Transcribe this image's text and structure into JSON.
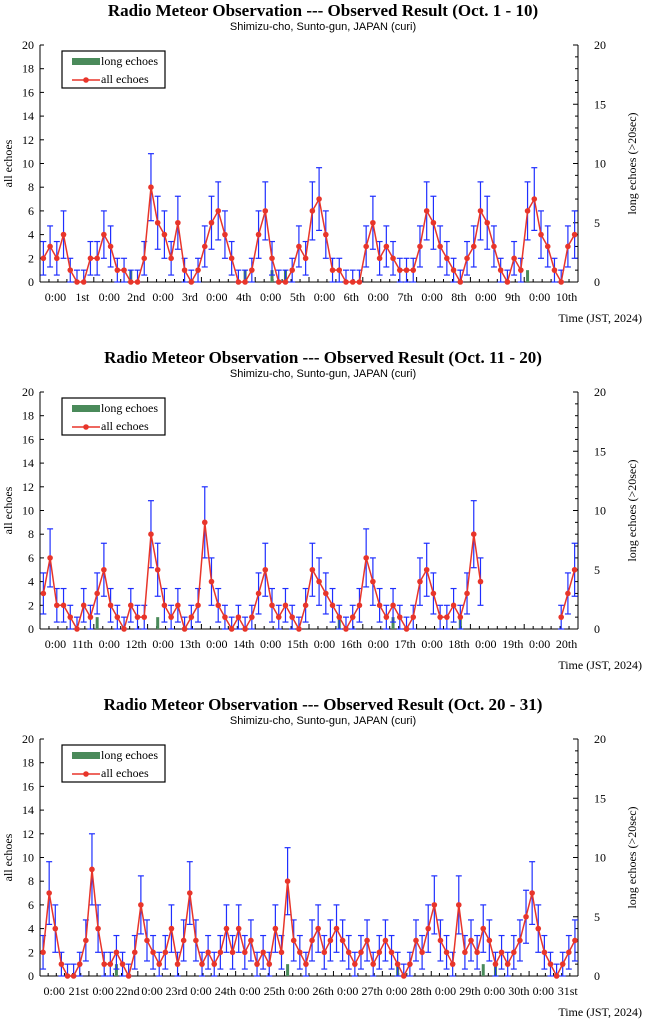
{
  "legend": {
    "long": "long echoes",
    "all": "all echoes"
  },
  "colors": {
    "all": "#e8352a",
    "err": "#1f2fff",
    "long": "#4a8a5a"
  },
  "chart_data": [
    {
      "type": "line",
      "title": "Radio Meteor Observation --- Observed Result (Oct. 1 - 10)",
      "subtitle": "Shimizu-cho, Sunto-gun, JAPAN (curi)",
      "ylabel": "all echoes",
      "y2label": "long echoes (>20sec)",
      "xlabel": "Time (JST, 2024)",
      "ylim": [
        0,
        20
      ],
      "y2lim": [
        0,
        20
      ],
      "yticks": [
        "0",
        "2",
        "4",
        "6",
        "8",
        "10",
        "12",
        "14",
        "16",
        "18",
        "20"
      ],
      "y2ticks": [
        "0",
        "5",
        "10",
        "15",
        "20"
      ],
      "xticks": [
        "0:00",
        "1st",
        "0:00",
        "2nd",
        "0:00",
        "3rd",
        "0:00",
        "4th",
        "0:00",
        "5th",
        "0:00",
        "6th",
        "0:00",
        "7th",
        "0:00",
        "8th",
        "0:00",
        "9th",
        "0:00",
        "10th"
      ],
      "step_hours": 3,
      "all_echoes": [
        2,
        3,
        2,
        4,
        1,
        0,
        0,
        2,
        2,
        4,
        3,
        1,
        1,
        0,
        0,
        2,
        8,
        5,
        4,
        2,
        5,
        1,
        0,
        1,
        3,
        5,
        6,
        4,
        2,
        0,
        0,
        1,
        4,
        6,
        2,
        0,
        0,
        1,
        3,
        2,
        6,
        7,
        4,
        1,
        1,
        0,
        0,
        0,
        3,
        5,
        2,
        3,
        2,
        1,
        1,
        1,
        3,
        6,
        5,
        3,
        2,
        1,
        0,
        2,
        3,
        6,
        5,
        3,
        1,
        0,
        2,
        1,
        6,
        7,
        4,
        3,
        1,
        0,
        3,
        4
      ],
      "long_echoes": [
        [
          13,
          1
        ],
        [
          30,
          1
        ],
        [
          34,
          1
        ],
        [
          36,
          1
        ],
        [
          72,
          1
        ]
      ]
    },
    {
      "type": "line",
      "title": "Radio Meteor Observation --- Observed Result (Oct. 11 - 20)",
      "subtitle": "Shimizu-cho, Sunto-gun, JAPAN (curi)",
      "ylabel": "all echoes",
      "y2label": "long echoes (>20sec)",
      "xlabel": "Time (JST, 2024)",
      "ylim": [
        0,
        20
      ],
      "y2lim": [
        0,
        20
      ],
      "yticks": [
        "0",
        "2",
        "4",
        "6",
        "8",
        "10",
        "12",
        "14",
        "16",
        "18",
        "20"
      ],
      "y2ticks": [
        "0",
        "5",
        "10",
        "15",
        "20"
      ],
      "xticks": [
        "0:00",
        "11th",
        "0:00",
        "12th",
        "0:00",
        "13th",
        "0:00",
        "14th",
        "0:00",
        "15th",
        "0:00",
        "16th",
        "0:00",
        "17th",
        "0:00",
        "18th",
        "0:00",
        "19th",
        "0:00",
        "20th"
      ],
      "step_hours": 3,
      "all_echoes": [
        3,
        6,
        2,
        2,
        1,
        0,
        2,
        1,
        3,
        5,
        2,
        1,
        0,
        2,
        1,
        1,
        8,
        5,
        2,
        1,
        2,
        0,
        1,
        2,
        9,
        4,
        2,
        1,
        0,
        1,
        0,
        1,
        3,
        5,
        2,
        1,
        2,
        1,
        0,
        2,
        5,
        4,
        3,
        2,
        1,
        0,
        1,
        2,
        6,
        4,
        2,
        1,
        2,
        1,
        0,
        1,
        4,
        5,
        3,
        1,
        1,
        2,
        1,
        3,
        8,
        4,
        null,
        null,
        null,
        null,
        null,
        null,
        null,
        null,
        null,
        null,
        null,
        1,
        3,
        5
      ],
      "long_echoes": [
        [
          8,
          1
        ],
        [
          17,
          1
        ],
        [
          44,
          1
        ],
        [
          52,
          1
        ],
        [
          62,
          1
        ]
      ]
    },
    {
      "type": "line",
      "title": "Radio Meteor Observation --- Observed Result (Oct. 20 - 31)",
      "subtitle": "Shimizu-cho, Sunto-gun, JAPAN (curi)",
      "ylabel": "all echoes",
      "y2label": "long echoes (>20sec)",
      "xlabel": "Time (JST, 2024)",
      "ylim": [
        0,
        20
      ],
      "y2lim": [
        0,
        20
      ],
      "yticks": [
        "0",
        "2",
        "4",
        "6",
        "8",
        "10",
        "12",
        "14",
        "16",
        "18",
        "20"
      ],
      "y2ticks": [
        "0",
        "5",
        "10",
        "15",
        "20"
      ],
      "xticks": [
        "0:00",
        "21st",
        "0:00",
        "22nd",
        "0:00",
        "23rd",
        "0:00",
        "24th",
        "0:00",
        "25th",
        "0:00",
        "26th",
        "0:00",
        "27th",
        "0:00",
        "28th",
        "0:00",
        "29th",
        "0:00",
        "30th",
        "0:00",
        "31st"
      ],
      "step_hours": 3,
      "all_echoes": [
        2,
        7,
        4,
        1,
        0,
        0,
        1,
        3,
        9,
        4,
        1,
        1,
        2,
        1,
        0,
        2,
        6,
        3,
        2,
        1,
        2,
        4,
        1,
        3,
        7,
        3,
        1,
        2,
        1,
        2,
        4,
        2,
        4,
        2,
        3,
        1,
        2,
        1,
        4,
        2,
        8,
        3,
        2,
        1,
        3,
        4,
        2,
        3,
        4,
        3,
        2,
        1,
        2,
        3,
        1,
        2,
        3,
        2,
        1,
        0,
        1,
        3,
        2,
        4,
        6,
        3,
        2,
        1,
        6,
        2,
        3,
        2,
        4,
        3,
        1,
        2,
        1,
        2,
        3,
        5,
        7,
        4,
        2,
        1,
        0,
        1,
        2,
        3
      ],
      "long_echoes": [
        [
          12,
          1
        ],
        [
          40,
          1
        ],
        [
          58,
          1
        ],
        [
          72,
          1
        ],
        [
          74,
          1
        ]
      ]
    }
  ]
}
